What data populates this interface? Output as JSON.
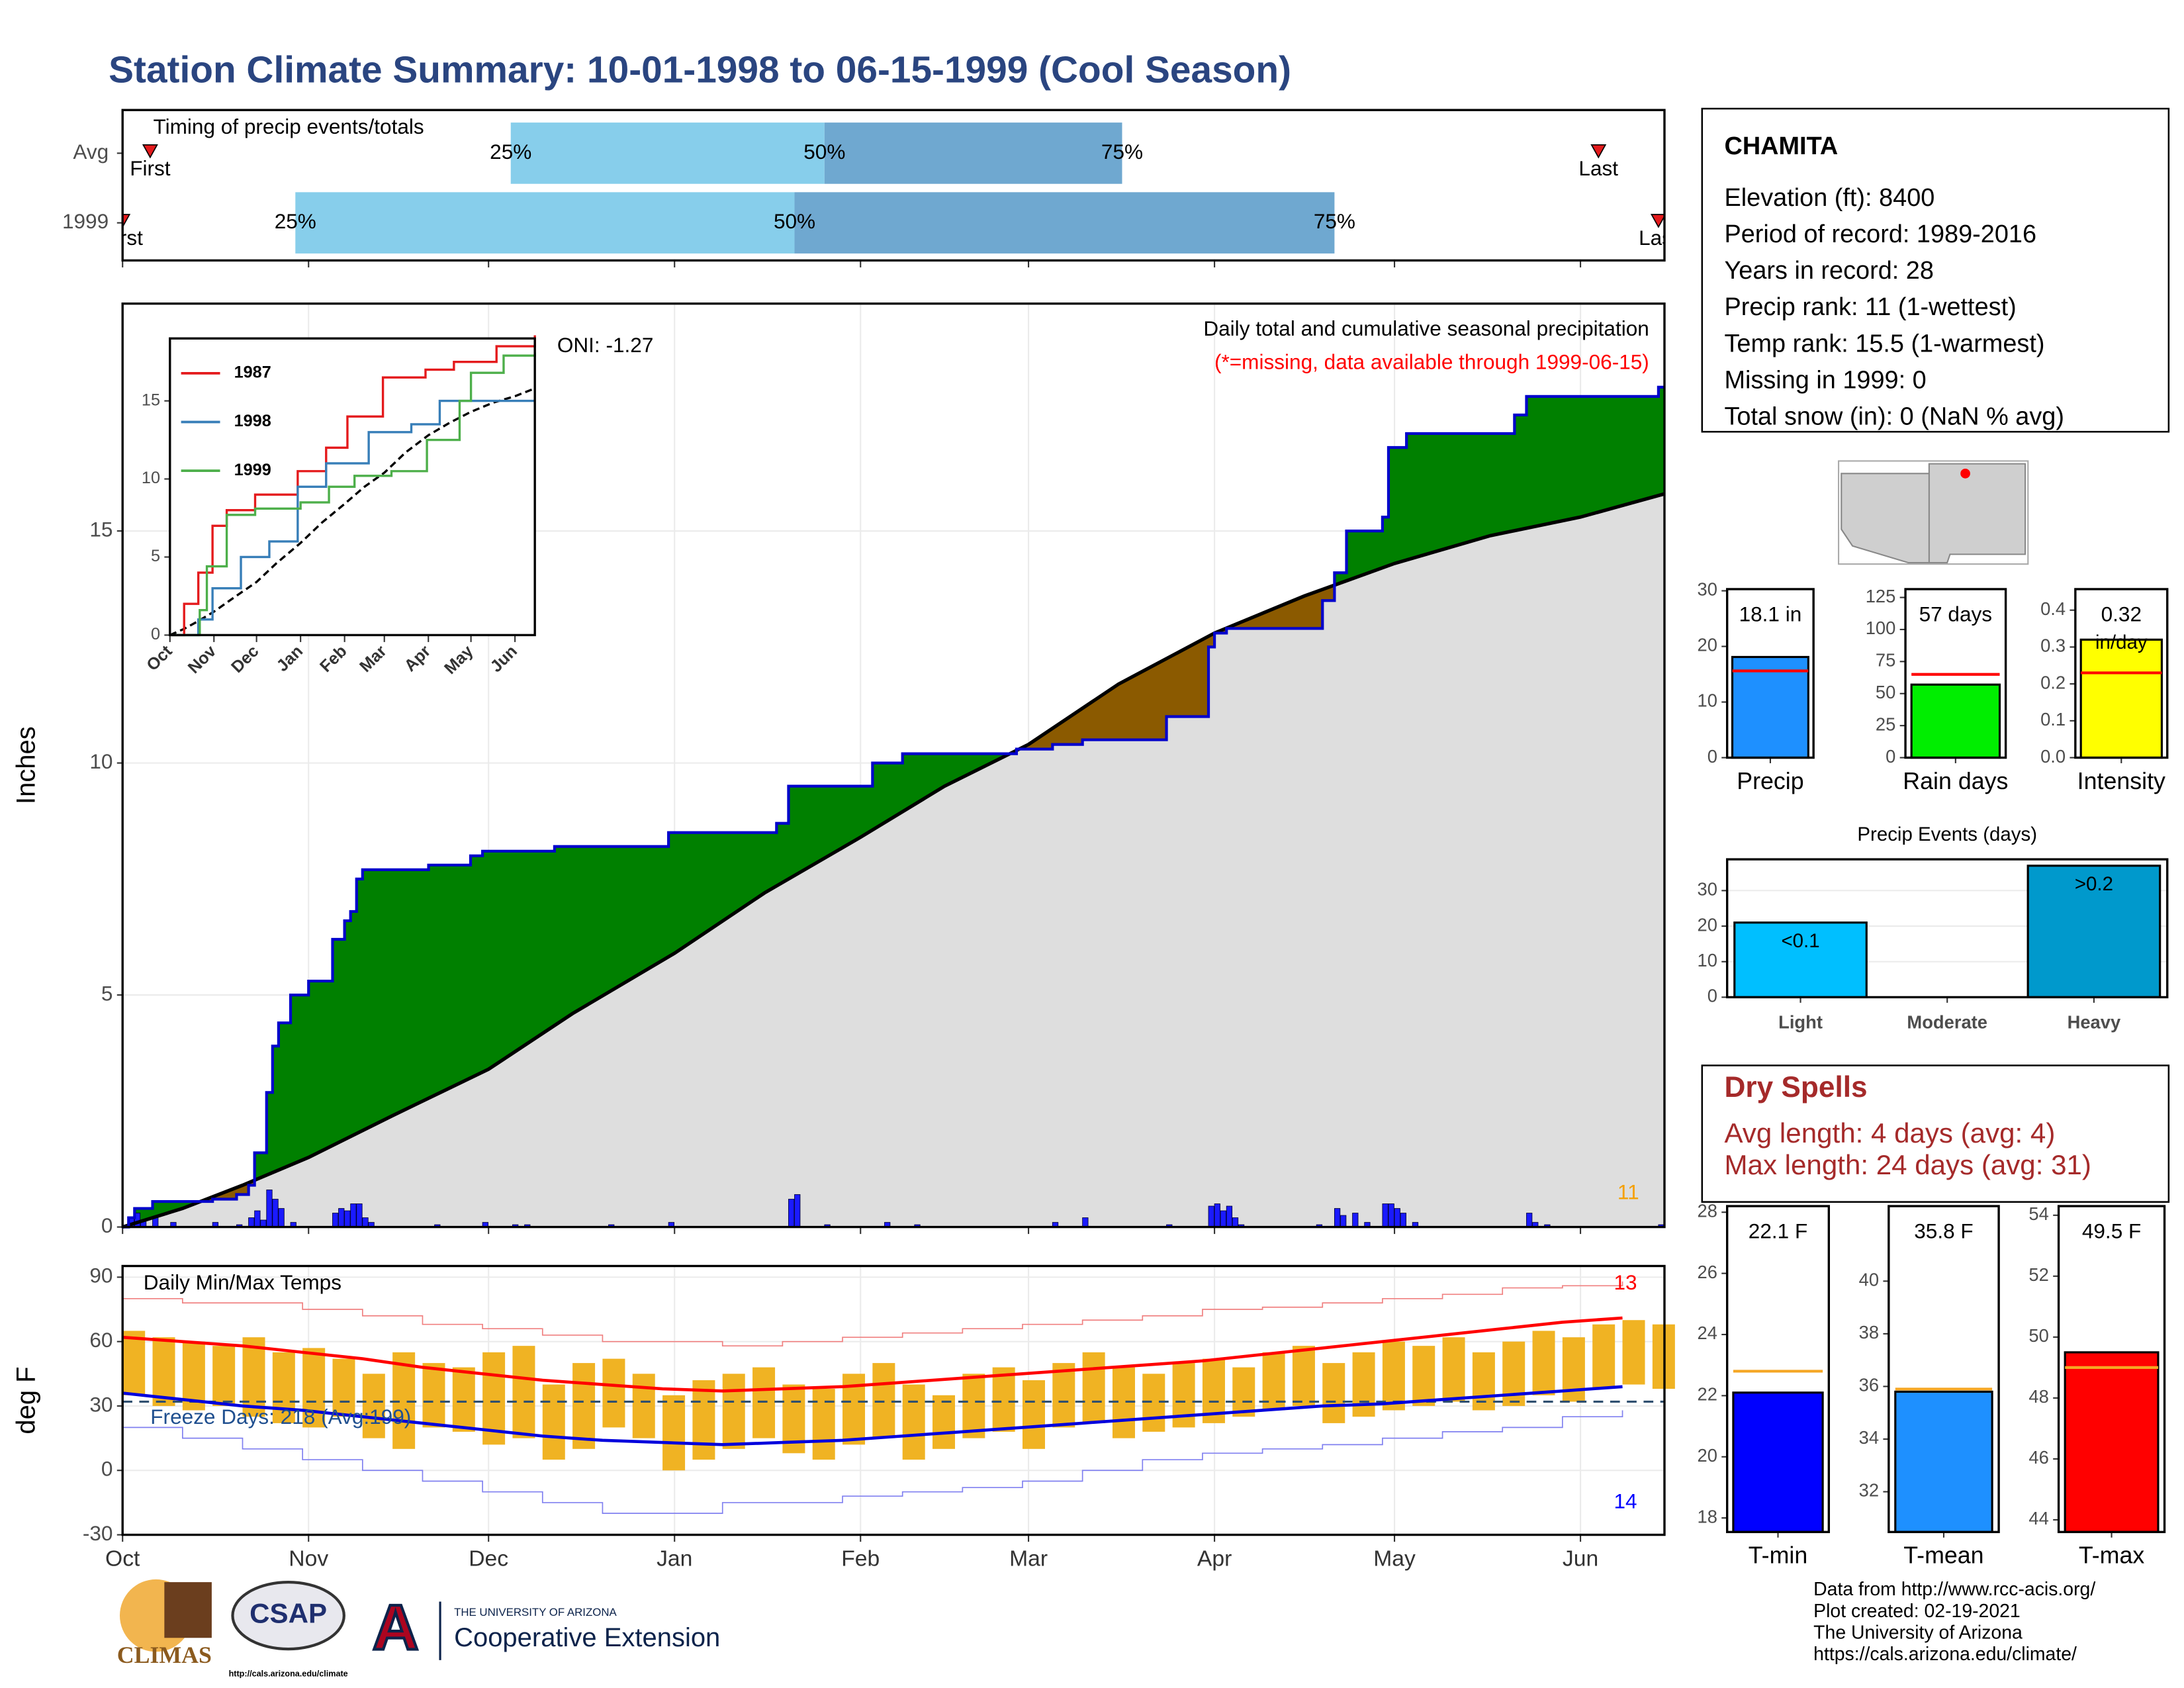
{
  "title": "Station Climate Summary: 10-01-1998 to 06-15-1999 (Cool Season)",
  "station": {
    "name": "CHAMITA",
    "lines": [
      "Elevation (ft): 8400",
      "Period of record: 1989-2016",
      "Years in record: 28",
      "Precip rank: 11 (1-wettest)",
      "Temp rank: 15.5 (1-warmest)",
      "Missing in 1999: 0",
      "Total snow (in): 0 (NaN % avg)"
    ]
  },
  "dry_spells": {
    "title": "Dry Spells",
    "lines": [
      "Avg length: 4 days (avg: 4)",
      "Max length: 24 days (avg: 31)"
    ]
  },
  "footer": [
    "Data from http://www.rcc-acis.org/",
    "Plot created: 02-19-2021",
    "The University of Arizona",
    "https://cals.arizona.edu/climate/"
  ],
  "logos": {
    "climas": "CLIMAS",
    "csap": "CSAP",
    "csap_url": "http://cals.arizona.edu/climate",
    "ua": "THE UNIVERSITY OF ARIZONA",
    "coop": "Cooperative Extension"
  },
  "chart_data": [
    {
      "type": "timing",
      "title": "Timing of precip events/totals",
      "categories": [
        "Avg",
        "1999"
      ],
      "marker_labels": [
        "First",
        "25%",
        "50%",
        "75%",
        "Last"
      ],
      "values": [
        [
          4.6,
          64.7,
          117,
          166.6,
          246
        ],
        [
          0,
          28.8,
          112,
          202,
          256
        ]
      ],
      "colors": [
        "#87ceeb",
        "#6fa8d0"
      ],
      "marker_color": "#e41a1c",
      "xlim": [
        0,
        257
      ],
      "xticks": [
        0,
        31,
        61,
        92,
        123,
        151,
        182,
        212,
        243
      ]
    },
    {
      "type": "cumulative",
      "title": "Daily total and cumulative seasonal precipitation",
      "subtitle": "(*=missing, data available through 1999-06-15)",
      "ylabel": "Inches",
      "xlim": [
        0,
        257
      ],
      "xticks": [
        0,
        31,
        61,
        92,
        123,
        151,
        182,
        212,
        243
      ],
      "ylim": [
        0,
        19.9
      ],
      "yticks": [
        0,
        5,
        10,
        15
      ],
      "grid": true,
      "series": [
        {
          "color": "#0000cc",
          "x": [
            0,
            1,
            2,
            5,
            15,
            19,
            21,
            22,
            24,
            25,
            26,
            28,
            31,
            35,
            37,
            38,
            39,
            40,
            51,
            58,
            60,
            72,
            91,
            109,
            111,
            125,
            130,
            149,
            155,
            160,
            174,
            181,
            182,
            184,
            200,
            202,
            204,
            210,
            211,
            214,
            232,
            234,
            256
          ],
          "values": [
            0,
            0.2,
            0.4,
            0.55,
            0.6,
            0.7,
            0.9,
            1.6,
            2.9,
            3.9,
            4.4,
            5.0,
            5.3,
            6.2,
            6.6,
            6.8,
            7.5,
            7.7,
            7.8,
            8.0,
            8.1,
            8.2,
            8.5,
            8.7,
            9.5,
            10.0,
            10.2,
            10.3,
            10.4,
            10.5,
            11.0,
            12.5,
            12.8,
            12.9,
            13.5,
            14.1,
            15.0,
            15.3,
            16.8,
            17.1,
            17.5,
            17.9,
            18.1
          ]
        },
        {
          "color": "#000000",
          "x": [
            0,
            10,
            20,
            31,
            45,
            61,
            75,
            92,
            107,
            123,
            137,
            151,
            166,
            182,
            197,
            212,
            228,
            243,
            257
          ],
          "values": [
            0,
            0.4,
            0.9,
            1.5,
            2.4,
            3.4,
            4.6,
            5.9,
            7.2,
            8.4,
            9.5,
            10.4,
            11.7,
            12.8,
            13.6,
            14.3,
            14.9,
            15.3,
            15.8
          ]
        }
      ],
      "fill_above": "#008000",
      "fill_below": "#8b5a00",
      "fill_base": "#dedede",
      "daily": {
        "color": "#1a1aff",
        "x": [
          1,
          2,
          3,
          5,
          8,
          15,
          19,
          21,
          22,
          23,
          24,
          25,
          26,
          28,
          35,
          36,
          37,
          38,
          39,
          40,
          41,
          52,
          60,
          65,
          67,
          81,
          91,
          111,
          112,
          117,
          127,
          132,
          155,
          160,
          174,
          181,
          182,
          183,
          184,
          185,
          186,
          199,
          202,
          203,
          205,
          207,
          210,
          211,
          212,
          213,
          215,
          234,
          235,
          237,
          256
        ],
        "values": [
          0.2,
          0.3,
          0.15,
          0.2,
          0.1,
          0.1,
          0.05,
          0.2,
          0.35,
          0.15,
          0.8,
          0.6,
          0.4,
          0.1,
          0.3,
          0.4,
          0.35,
          0.5,
          0.5,
          0.2,
          0.1,
          0.05,
          0.1,
          0.05,
          0.05,
          0.05,
          0.1,
          0.6,
          0.7,
          0.05,
          0.1,
          0.05,
          0.1,
          0.2,
          0.05,
          0.45,
          0.5,
          0.35,
          0.45,
          0.2,
          0.05,
          0.05,
          0.4,
          0.25,
          0.3,
          0.1,
          0.5,
          0.5,
          0.4,
          0.3,
          0.1,
          0.3,
          0.1,
          0.05,
          0.05
        ]
      },
      "event_count": 11,
      "event_count_color": "#f5a000"
    },
    {
      "type": "line",
      "annotation": "ONI: -1.27",
      "xlim": [
        0,
        257
      ],
      "xticks": [
        {
          "value": 0,
          "label": "Oct"
        },
        {
          "value": 31,
          "label": "Nov"
        },
        {
          "value": 61,
          "label": "Dec"
        },
        {
          "value": 92,
          "label": "Jan"
        },
        {
          "value": 123,
          "label": "Feb"
        },
        {
          "value": 151,
          "label": "Mar"
        },
        {
          "value": 182,
          "label": "Apr"
        },
        {
          "value": 212,
          "label": "May"
        },
        {
          "value": 243,
          "label": "Jun"
        }
      ],
      "ylim": [
        0,
        19
      ],
      "yticks": [
        0,
        5,
        10,
        15
      ],
      "legend": "top-left",
      "series": [
        {
          "name": "1987",
          "color": "#e41a1c",
          "x": [
            0,
            10,
            20,
            30,
            40,
            60,
            90,
            110,
            125,
            150,
            180,
            200,
            230,
            250,
            257
          ],
          "values": [
            0,
            2,
            4,
            7,
            8,
            9,
            10.5,
            12,
            14,
            16.5,
            17,
            17.5,
            18.5,
            18.5,
            19.2
          ]
        },
        {
          "name": "1998",
          "color": "#377eb8",
          "x": [
            0,
            20,
            30,
            50,
            70,
            90,
            110,
            140,
            170,
            190,
            220,
            257
          ],
          "values": [
            0,
            1,
            3,
            5,
            6,
            9.5,
            11,
            13,
            13.5,
            15,
            15,
            15
          ]
        },
        {
          "name": "1999",
          "color": "#4daf4a",
          "x": [
            0,
            21,
            26,
            40,
            60,
            92,
            112,
            130,
            156,
            181,
            204,
            212,
            235,
            257
          ],
          "values": [
            0,
            1.6,
            4.4,
            7.7,
            8.1,
            8.5,
            9.5,
            10.2,
            10.5,
            12.5,
            15,
            16.8,
            17.9,
            18.1
          ]
        }
      ]
    },
    {
      "type": "rangebar",
      "title": "Daily Min/Max Temps",
      "ylabel": "deg F",
      "xlim": [
        0,
        257
      ],
      "xticks": [
        {
          "value": 0,
          "label": "Oct"
        },
        {
          "value": 31,
          "label": "Nov"
        },
        {
          "value": 61,
          "label": "Dec"
        },
        {
          "value": 92,
          "label": "Jan"
        },
        {
          "value": 123,
          "label": "Feb"
        },
        {
          "value": 151,
          "label": "Mar"
        },
        {
          "value": 182,
          "label": "Apr"
        },
        {
          "value": 212,
          "label": "May"
        },
        {
          "value": 243,
          "label": "Jun"
        }
      ],
      "ylim": [
        -30,
        95.2
      ],
      "yticks": [
        -30,
        0,
        30,
        60,
        90
      ],
      "grid": true,
      "color": "#f0b323",
      "x": [
        0,
        5,
        10,
        15,
        20,
        25,
        30,
        35,
        40,
        45,
        50,
        55,
        60,
        65,
        70,
        75,
        80,
        85,
        90,
        95,
        100,
        105,
        110,
        115,
        120,
        125,
        130,
        135,
        140,
        145,
        150,
        155,
        160,
        165,
        170,
        175,
        180,
        185,
        190,
        195,
        200,
        205,
        210,
        215,
        220,
        225,
        230,
        235,
        240,
        245,
        250,
        255
      ],
      "tmax": [
        65,
        62,
        60,
        58,
        62,
        55,
        57,
        52,
        45,
        55,
        50,
        48,
        55,
        58,
        40,
        50,
        52,
        45,
        35,
        42,
        45,
        48,
        40,
        38,
        45,
        50,
        40,
        35,
        45,
        48,
        42,
        50,
        55,
        48,
        45,
        50,
        52,
        48,
        55,
        58,
        50,
        55,
        60,
        58,
        62,
        55,
        60,
        65,
        62,
        68,
        70,
        68
      ],
      "tmin": [
        35,
        30,
        28,
        30,
        25,
        22,
        20,
        25,
        15,
        10,
        20,
        18,
        12,
        15,
        5,
        10,
        20,
        15,
        0,
        5,
        10,
        15,
        8,
        5,
        12,
        15,
        5,
        10,
        15,
        18,
        10,
        20,
        22,
        15,
        18,
        20,
        22,
        25,
        28,
        30,
        22,
        25,
        28,
        30,
        32,
        28,
        30,
        35,
        32,
        38,
        40,
        38
      ],
      "normal_x": [
        0,
        10,
        20,
        30,
        40,
        50,
        60,
        70,
        80,
        90,
        100,
        110,
        120,
        130,
        140,
        150,
        160,
        170,
        180,
        190,
        200,
        210,
        220,
        230,
        240,
        250
      ],
      "avg_max": [
        62,
        60,
        58,
        55,
        52,
        48,
        45,
        42,
        40,
        38,
        37,
        38,
        39,
        41,
        43,
        45,
        47,
        49,
        51,
        54,
        57,
        60,
        63,
        66,
        69,
        71
      ],
      "avg_min": [
        36,
        33,
        30,
        28,
        25,
        22,
        19,
        16,
        14,
        13,
        12,
        13,
        14,
        16,
        18,
        20,
        22,
        24,
        26,
        28,
        30,
        31,
        33,
        35,
        37,
        39
      ],
      "record_high": [
        80,
        78,
        78,
        75,
        72,
        68,
        66,
        63,
        60,
        60,
        58,
        60,
        62,
        64,
        66,
        68,
        70,
        72,
        75,
        76,
        78,
        80,
        82,
        85,
        86,
        88
      ],
      "record_low": [
        20,
        15,
        10,
        5,
        0,
        -5,
        -10,
        -15,
        -20,
        -20,
        -15,
        -15,
        -12,
        -10,
        -8,
        -5,
        0,
        5,
        8,
        10,
        12,
        15,
        18,
        20,
        25,
        28
      ],
      "freeze_line": 32,
      "annotation": "Freeze Days: 218 (Avg:199)",
      "record_high_count": 13,
      "record_low_count": 14
    },
    {
      "type": "bar",
      "categories": [
        "Precip"
      ],
      "values": [
        18.1
      ],
      "value_labels": [
        "18.1 in"
      ],
      "average": [
        15.6
      ],
      "color": "#1e90ff",
      "ylim": [
        0,
        30.3
      ],
      "yticks": [
        0,
        10,
        20,
        30
      ]
    },
    {
      "type": "bar",
      "categories": [
        "Rain days"
      ],
      "values": [
        57
      ],
      "value_labels": [
        "57 days"
      ],
      "average": [
        65
      ],
      "color": "#00ee00",
      "ylim": [
        0,
        131.5
      ],
      "yticks": [
        0,
        25,
        50,
        75,
        100,
        125
      ]
    },
    {
      "type": "bar",
      "categories": [
        "Intensity"
      ],
      "values": [
        0.32
      ],
      "value_labels": [
        "0.32"
      ],
      "unit": "in/day",
      "average": [
        0.23
      ],
      "color": "#ffff00",
      "ylim": [
        0,
        0.457
      ],
      "yticks": [
        {
          "value": 0,
          "label": "0.0"
        },
        0.1,
        0.2,
        0.3,
        0.4
      ]
    },
    {
      "type": "bar",
      "title": "Precip Events (days)",
      "categories": [
        "Light",
        "Moderate",
        "Heavy"
      ],
      "values": [
        21,
        0,
        37
      ],
      "value_labels": [
        "<0.1",
        null,
        ">0.2"
      ],
      "colors": [
        "#00bfff",
        "#00b2ee",
        "#0099cc"
      ],
      "ylim": [
        0,
        38.8
      ],
      "yticks": [
        0,
        10,
        20,
        30
      ],
      "grid": true
    },
    {
      "type": "bar",
      "categories": [
        "T-min"
      ],
      "values": [
        22.1
      ],
      "value_labels": [
        "22.1 F"
      ],
      "average": [
        22.8
      ],
      "color": "#0000ff",
      "ylim": [
        17.54,
        28.2
      ],
      "yticks": [
        18,
        20,
        22,
        24,
        26,
        28
      ]
    },
    {
      "type": "bar",
      "categories": [
        "T-mean"
      ],
      "values": [
        35.8
      ],
      "value_labels": [
        "35.8 F"
      ],
      "average": [
        35.9
      ],
      "color": "#1e90ff",
      "ylim": [
        30.47,
        42.85
      ],
      "yticks": [
        32,
        34,
        36,
        38,
        40
      ]
    },
    {
      "type": "bar",
      "categories": [
        "T-max"
      ],
      "values": [
        49.5
      ],
      "value_labels": [
        "49.5 F"
      ],
      "average": [
        49.0
      ],
      "color": "#ff0000",
      "ylim": [
        43.6,
        54.3
      ],
      "yticks": [
        44,
        46,
        48,
        50,
        52,
        54
      ]
    }
  ]
}
